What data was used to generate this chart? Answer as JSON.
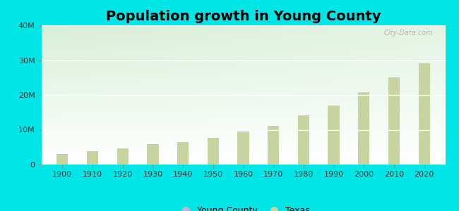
{
  "title": "Population growth in Young County",
  "background_color": "#00E5E5",
  "years": [
    1900,
    1910,
    1920,
    1930,
    1940,
    1950,
    1960,
    1970,
    1980,
    1990,
    2000,
    2010,
    2020
  ],
  "texas_values": [
    3048710,
    3896542,
    4663228,
    5824715,
    6414824,
    7711194,
    9579677,
    11196730,
    14229191,
    16986510,
    20851820,
    25145561,
    29145505
  ],
  "young_county_values": [
    5000,
    8000,
    9500,
    10000,
    8500,
    8000,
    11000,
    14000,
    18000,
    17000,
    17000,
    18000,
    17000
  ],
  "texas_bar_color": "#c8d4a0",
  "young_county_bar_color": "#c8b0d4",
  "ylim": [
    0,
    40000000
  ],
  "yticks": [
    0,
    10000000,
    20000000,
    30000000,
    40000000
  ],
  "ytick_labels": [
    "0",
    "10M",
    "20M",
    "30M",
    "40M"
  ],
  "title_fontsize": 14,
  "tick_fontsize": 8,
  "legend_young_label": "Young County",
  "legend_texas_label": "Texas",
  "watermark": "City-Data.com",
  "bar_width": 3.8,
  "xlim": [
    1893,
    2027
  ],
  "gradient_colors": [
    "#cce8cc",
    "#f0faf0",
    "#ffffff"
  ]
}
